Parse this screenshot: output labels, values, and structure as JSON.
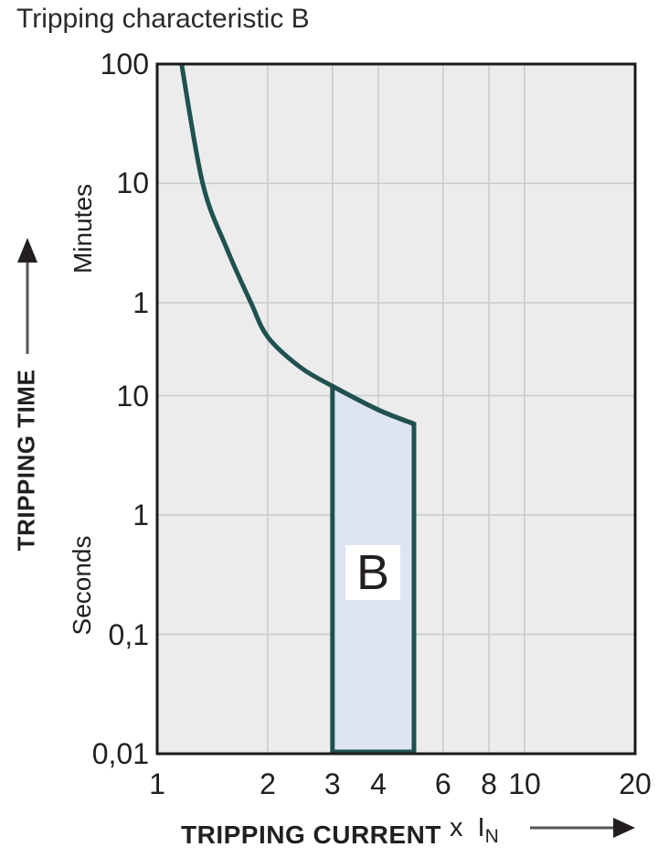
{
  "title": "Tripping characteristic B",
  "colors": {
    "curve": "#1f5150",
    "region_fill": "#dde4f2",
    "plot_bg": "#ececec",
    "grid": "#c8cacc",
    "border": "#1a1a1a",
    "text": "#231f20",
    "arrow": "#231f20",
    "arrow_line": "#555555"
  },
  "chart_data": {
    "type": "line",
    "title": "Tripping characteristic B",
    "grid": true,
    "x_axis": {
      "label": "TRIPPING CURRENT",
      "multiplier_label": "x I",
      "multiplier_sub": "N",
      "scale": "log",
      "domain": [
        1,
        20
      ],
      "ticks": [
        {
          "label": "1",
          "value": 1
        },
        {
          "label": "2",
          "value": 2
        },
        {
          "label": "3",
          "value": 3
        },
        {
          "label": "4",
          "value": 4
        },
        {
          "label": "6",
          "value": 6
        },
        {
          "label": "8",
          "value": 8
        },
        {
          "label": "10",
          "value": 10
        },
        {
          "label": "20",
          "value": 20
        }
      ],
      "gridlines_at": [
        2,
        3,
        4,
        6,
        8,
        10
      ]
    },
    "y_axis": {
      "label": "TRIPPING TIME",
      "unit_sections": [
        "Minutes",
        "Seconds"
      ],
      "scale": "log",
      "domain_seconds": [
        0.01,
        6000
      ],
      "ticks": [
        {
          "label": "100",
          "seconds": 6000,
          "unit": "minutes"
        },
        {
          "label": "10",
          "seconds": 600,
          "unit": "minutes"
        },
        {
          "label": "1",
          "seconds": 60,
          "unit": "minutes"
        },
        {
          "label": "10",
          "seconds": 10,
          "unit": "seconds"
        },
        {
          "label": "1",
          "seconds": 1,
          "unit": "seconds"
        },
        {
          "label": "0,1",
          "seconds": 0.1,
          "unit": "seconds"
        },
        {
          "label": "0,01",
          "seconds": 0.01,
          "unit": "seconds"
        }
      ],
      "gridlines_at_seconds": [
        600,
        60,
        10,
        1,
        0.1
      ]
    },
    "series": [
      {
        "name": "thermal-trip-curve",
        "points_v_t_seconds": [
          [
            1.165,
            6000
          ],
          [
            1.33,
            600
          ],
          [
            1.54,
            176
          ],
          [
            1.8,
            60
          ],
          [
            2.0,
            31
          ],
          [
            2.44,
            17.5
          ],
          [
            3.0,
            12
          ],
          [
            4.0,
            7.6
          ],
          [
            5.0,
            5.8
          ]
        ]
      }
    ],
    "region": {
      "label": "B",
      "x_range": [
        3,
        5
      ],
      "top_points_v_t_seconds": [
        [
          3.0,
          12
        ],
        [
          4.0,
          7.6
        ],
        [
          5.0,
          5.8
        ]
      ],
      "bottom_seconds": 0.01
    }
  }
}
